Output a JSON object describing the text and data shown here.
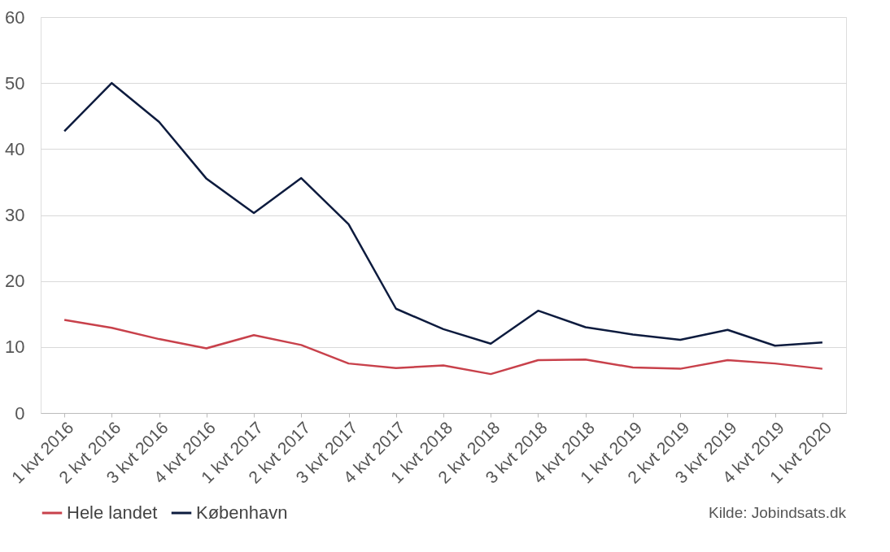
{
  "chart_data": {
    "type": "line",
    "categories": [
      "1 kvt 2016",
      "2 kvt 2016",
      "3 kvt 2016",
      "4 kvt 2016",
      "1 kvt 2017",
      "2 kvt 2017",
      "3 kvt 2017",
      "4 kvt 2017",
      "1 kvt 2018",
      "2 kvt 2018",
      "3 kvt 2018",
      "4 kvt 2018",
      "1 kvt 2019",
      "2 kvt 2019",
      "3 kvt 2019",
      "4 kvt 2019",
      "1 kvt 2020"
    ],
    "series": [
      {
        "name": "Hele landet",
        "color": "#c8414b",
        "values": [
          14.1,
          12.9,
          11.2,
          9.8,
          11.8,
          10.3,
          7.5,
          6.8,
          7.2,
          5.9,
          8.0,
          8.1,
          6.9,
          6.7,
          8.0,
          7.5,
          6.7
        ]
      },
      {
        "name": "København",
        "color": "#0d1b3e",
        "values": [
          42.7,
          50.0,
          44.1,
          35.5,
          30.3,
          35.6,
          28.6,
          15.8,
          12.7,
          10.5,
          15.5,
          13.0,
          11.9,
          11.1,
          12.6,
          10.2,
          10.7
        ]
      }
    ],
    "ylim": [
      0,
      60
    ],
    "yticks": [
      0,
      10,
      20,
      30,
      40,
      50,
      60
    ],
    "grid": "y",
    "legend": "bottom",
    "marker": "none",
    "line_style": "solid",
    "annotations": [
      "Kilde: Jobindsats.dk"
    ]
  }
}
